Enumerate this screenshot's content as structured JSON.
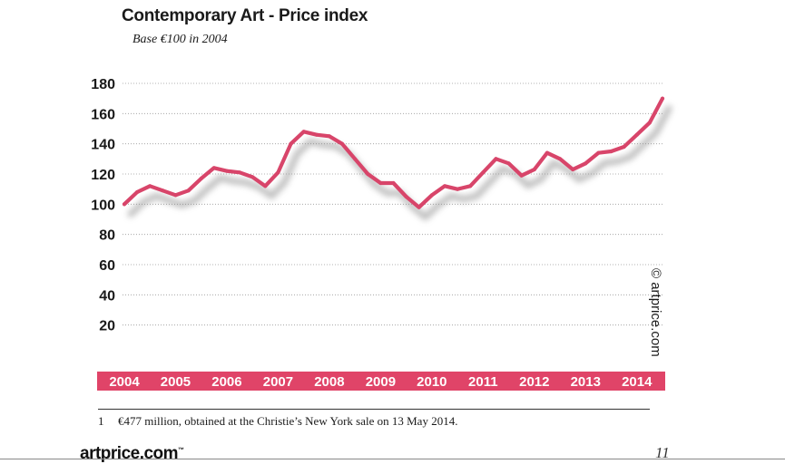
{
  "chart_data": {
    "type": "line",
    "title": "Contemporary Art - Price index",
    "subtitle": "Base €100 in 2004",
    "xlabel": "",
    "ylabel": "",
    "ylim": [
      0,
      180
    ],
    "yticks": [
      20,
      40,
      60,
      80,
      100,
      120,
      140,
      160,
      180
    ],
    "xticks": [
      "2004",
      "2005",
      "2006",
      "2007",
      "2008",
      "2009",
      "2010",
      "2011",
      "2012",
      "2013",
      "2014"
    ],
    "xlim": [
      2004,
      2014.5
    ],
    "grid": true,
    "x": [
      2004.0,
      2004.25,
      2004.5,
      2004.75,
      2005.0,
      2005.25,
      2005.5,
      2005.75,
      2006.0,
      2006.25,
      2006.5,
      2006.75,
      2007.0,
      2007.25,
      2007.5,
      2007.75,
      2008.0,
      2008.25,
      2008.5,
      2008.75,
      2009.0,
      2009.25,
      2009.5,
      2009.75,
      2010.0,
      2010.25,
      2010.5,
      2010.75,
      2011.0,
      2011.25,
      2011.5,
      2011.75,
      2012.0,
      2012.25,
      2012.5,
      2012.75,
      2013.0,
      2013.25,
      2013.5,
      2013.75,
      2014.0,
      2014.25,
      2014.5
    ],
    "series": [
      {
        "values": [
          100,
          108,
          112,
          109,
          106,
          109,
          117,
          124,
          122,
          121,
          118,
          112,
          121,
          140,
          148,
          146,
          145,
          140,
          130,
          120,
          114,
          114,
          105,
          98,
          106,
          112,
          110,
          112,
          121,
          130,
          127,
          119,
          123,
          134,
          130,
          123,
          127,
          134,
          135,
          138,
          146,
          154,
          170
        ],
        "color": "#d8456a"
      }
    ],
    "watermark": "© artprice.com",
    "axis_band_color": "#e04468"
  },
  "footnote": {
    "number": "1",
    "text": "€477 million, obtained at the Christie’s New York sale on 13 May 2014."
  },
  "footer": {
    "logo": "artprice.com",
    "logo_mark": "™",
    "page_number": "11"
  }
}
